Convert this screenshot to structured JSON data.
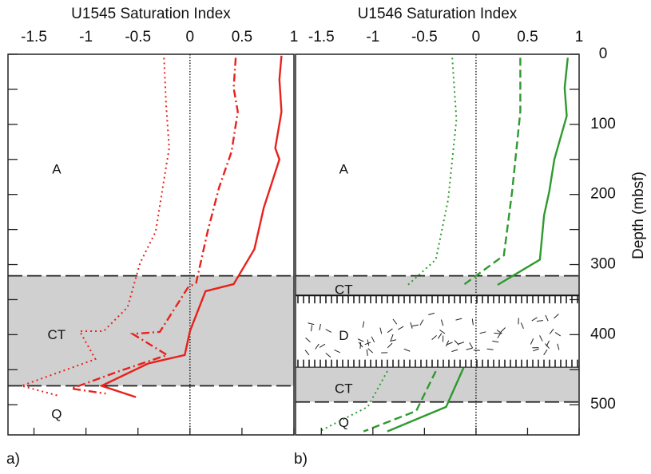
{
  "chart_data": [
    {
      "type": "line",
      "title": "U1545 Saturation Index",
      "panel_label": "a)",
      "xlim": [
        -1.75,
        1.0
      ],
      "xticks": [
        -1.5,
        -1.0,
        -0.5,
        0.0,
        0.5,
        1.0
      ],
      "ylim": [
        0,
        543
      ],
      "yticks": [
        0,
        100,
        200,
        300,
        400,
        500
      ],
      "yminorticks": [
        50,
        150,
        250,
        350,
        450
      ],
      "zero_line": 0,
      "zones": [
        {
          "label": "A",
          "top": 0,
          "bottom": 316,
          "fill": "none"
        },
        {
          "label": "CT",
          "top": 316,
          "bottom": 473,
          "fill": "gray"
        },
        {
          "label": "Q",
          "top": 473,
          "bottom": 543,
          "fill": "none"
        }
      ],
      "series": [
        {
          "color": "#e8211b",
          "style": "solid",
          "x": [
            0.88,
            0.86,
            0.88,
            0.82,
            0.86,
            0.71,
            0.62,
            0.42,
            0.15,
            0.0,
            -0.05,
            -0.4,
            -0.85,
            -0.52
          ],
          "y": [
            2,
            36,
            82,
            134,
            150,
            219,
            278,
            328,
            338,
            395,
            429,
            441,
            473,
            489
          ]
        },
        {
          "color": "#e8211b",
          "style": "dashdot",
          "x": [
            0.44,
            0.42,
            0.46,
            0.4,
            0.28,
            0.17,
            0.06,
            -0.02,
            -0.29,
            -0.55,
            -0.22,
            -0.68,
            -1.14,
            -0.81
          ],
          "y": [
            5,
            48,
            82,
            139,
            190,
            253,
            326,
            333,
            396,
            399,
            429,
            452,
            477,
            484
          ]
        },
        {
          "color": "#e8211b",
          "style": "dotted",
          "x": [
            -0.25,
            -0.23,
            -0.2,
            -0.25,
            -0.33,
            -0.48,
            -0.6,
            -0.83,
            -1.06,
            -0.91,
            -1.62,
            -1.27
          ],
          "y": [
            5,
            71,
            134,
            179,
            253,
            298,
            361,
            395,
            395,
            435,
            473,
            487
          ]
        }
      ]
    },
    {
      "type": "line",
      "title": "U1546 Saturation Index",
      "panel_label": "b)",
      "y_label": "Depth (mbsf)",
      "xlim": [
        -1.75,
        1.0
      ],
      "xticks": [
        -1.5,
        -1.0,
        -0.5,
        0.0,
        0.5,
        1.0
      ],
      "ylim": [
        0,
        543
      ],
      "yticks": [
        0,
        100,
        200,
        300,
        400,
        500
      ],
      "yminorticks": [
        50,
        150,
        250,
        350,
        450
      ],
      "zero_line": 0,
      "zones": [
        {
          "label": "A",
          "top": 0,
          "bottom": 316,
          "fill": "none"
        },
        {
          "label": "CT",
          "top": 316,
          "bottom": 344,
          "fill": "gray"
        },
        {
          "label": "D",
          "top": 344,
          "bottom": 447,
          "fill": "hatch"
        },
        {
          "label": "CT",
          "top": 447,
          "bottom": 496,
          "fill": "gray"
        },
        {
          "label": "Q",
          "top": 496,
          "bottom": 543,
          "fill": "none"
        }
      ],
      "series": [
        {
          "color": "#2e9a2e",
          "style": "solid",
          "x": [
            0.89,
            0.86,
            0.88,
            0.76,
            0.71,
            0.66,
            0.62,
            0.21,
            null,
            -0.12,
            -0.29,
            -0.86
          ],
          "y": [
            5,
            48,
            88,
            150,
            196,
            230,
            293,
            329,
            null,
            447,
            503,
            538
          ]
        },
        {
          "color": "#2e9a2e",
          "style": "dashed",
          "x": [
            0.43,
            0.43,
            0.35,
            0.27,
            -0.12,
            null,
            -0.39,
            -0.58,
            -1.09
          ],
          "y": [
            5,
            82,
            196,
            287,
            329,
            null,
            452,
            509,
            538
          ]
        },
        {
          "color": "#2e9a2e",
          "style": "dotted",
          "x": [
            -0.23,
            -0.19,
            -0.27,
            -0.39,
            -0.66,
            null,
            -0.86,
            -1.05,
            -1.52
          ],
          "y": [
            5,
            93,
            207,
            293,
            329,
            null,
            452,
            503,
            538
          ]
        }
      ]
    }
  ]
}
